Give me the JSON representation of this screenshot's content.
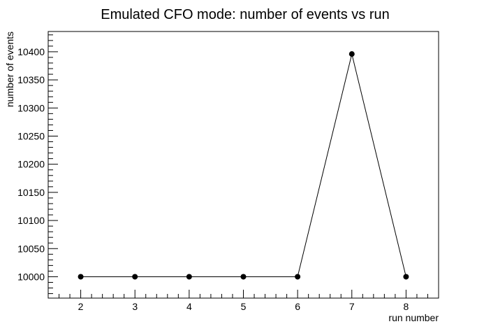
{
  "chart_data": {
    "type": "line",
    "title": "Emulated CFO mode: number of events vs run",
    "xlabel": "run number",
    "ylabel": "number of events",
    "x": [
      2,
      3,
      4,
      5,
      6,
      7,
      8
    ],
    "series": [
      {
        "values": [
          10000,
          10000,
          10000,
          10000,
          10000,
          10396,
          10000
        ]
      }
    ],
    "xlim": [
      1.4,
      8.6
    ],
    "ylim": [
      9962,
      10436
    ],
    "xticks": [
      "2",
      "3",
      "4",
      "5",
      "6",
      "7",
      "8"
    ],
    "yticks": [
      "10000",
      "10050",
      "10100",
      "10150",
      "10200",
      "10250",
      "10300",
      "10350",
      "10400"
    ],
    "grid": false,
    "marker": "filled-circle",
    "colors": {
      "line": "#000000",
      "marker": "#000000",
      "frame": "#000000"
    }
  }
}
